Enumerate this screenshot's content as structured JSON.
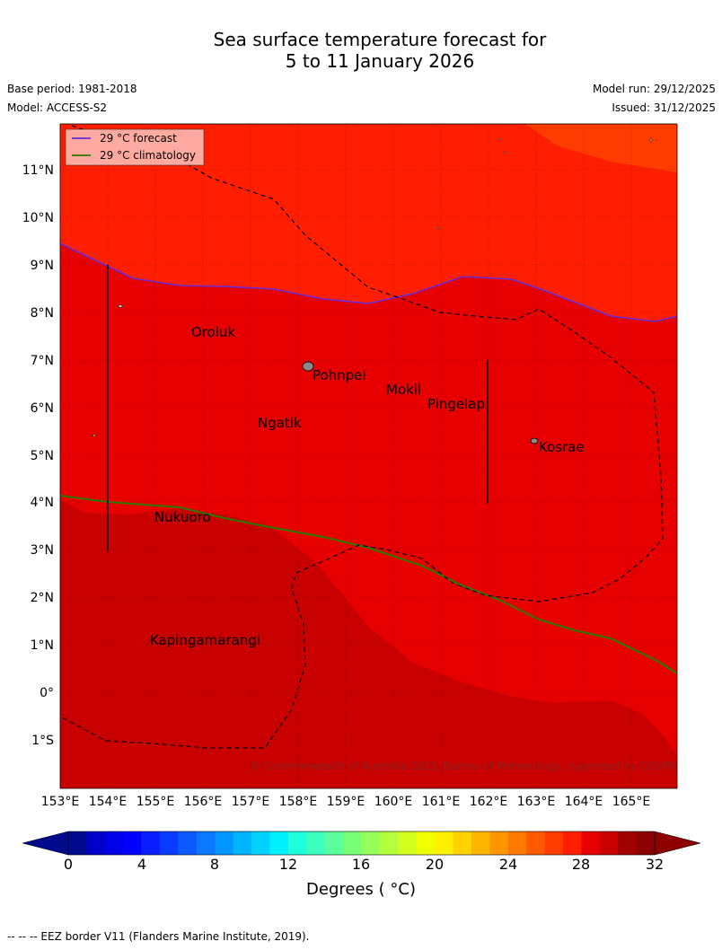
{
  "title": {
    "line1": "Sea surface temperature forecast for",
    "line2": "5 to 11 January 2026"
  },
  "meta": {
    "base_period": "Base period: 1981-2018",
    "model": "Model: ACCESS-S2",
    "model_run": "Model run: 29/12/2025",
    "issued": "Issued: 31/12/2025"
  },
  "legend": {
    "forecast": "29 °C  forecast",
    "climatology": "29 °C  climatology"
  },
  "copyright": "© Commonwealth of Australia 2025, Bureau of Meteorology, supported by COSPPac",
  "axes": {
    "lon_ticks": [
      "153°E",
      "154°E",
      "155°E",
      "156°E",
      "157°E",
      "158°E",
      "159°E",
      "160°E",
      "161°E",
      "162°E",
      "163°E",
      "164°E",
      "165°E"
    ],
    "lat_ticks": [
      "11°N",
      "10°N",
      "9°N",
      "8°N",
      "7°N",
      "6°N",
      "5°N",
      "4°N",
      "3°N",
      "2°N",
      "1°N",
      "0°",
      "1°S"
    ]
  },
  "places": {
    "oroluk": "Oroluk",
    "pohnpei": "Pohnpei",
    "mokil": "Mokil",
    "pingelap": "Pingelap",
    "ngatik": "Ngatik",
    "kosrae": "Kosrae",
    "nukuoro": "Nukuoro",
    "kapingamarangi": "Kapingamarangi"
  },
  "colorbar": {
    "tick_labels": [
      "0",
      "4",
      "8",
      "12",
      "16",
      "20",
      "24",
      "28",
      "32"
    ],
    "title": "Degrees ( °C)",
    "colors": [
      "#000a8c",
      "#0000c8",
      "#0000e6",
      "#0000ff",
      "#0a1eff",
      "#0a3cff",
      "#0a5aff",
      "#0a78ff",
      "#0096ff",
      "#00b4ff",
      "#00d2ff",
      "#00f0ff",
      "#1effdc",
      "#3cffbe",
      "#5aff9b",
      "#78ff78",
      "#96ff5a",
      "#b4ff3c",
      "#d2ff1e",
      "#f0ff00",
      "#fff000",
      "#ffd200",
      "#ffb400",
      "#ff9600",
      "#ff7800",
      "#ff5a00",
      "#ff3c00",
      "#ff1e00",
      "#e60000",
      "#c80000",
      "#a00000",
      "#8c0000"
    ]
  },
  "regions": {
    "colors": {
      "sst_29": "#ff1e00",
      "sst_30": "#e60000",
      "sst_31": "#c80000",
      "sst_28": "#ff3c00"
    }
  },
  "footnote": "--  --  -- EEZ border V11 (Flanders Marine Institute, 2019)."
}
